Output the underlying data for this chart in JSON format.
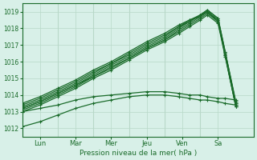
{
  "title": "",
  "xlabel": "Pression niveau de la mer( hPa )",
  "ylabel": "",
  "bg_color": "#d8f0e8",
  "grid_color": "#b8d8c8",
  "line_color": "#1a6b2a",
  "xlim": [
    0,
    6.5
  ],
  "ylim": [
    1011.5,
    1019.5
  ],
  "yticks": [
    1012,
    1013,
    1014,
    1015,
    1016,
    1017,
    1018,
    1019
  ],
  "day_positions": [
    0.5,
    1.5,
    2.5,
    3.5,
    4.5,
    5.5
  ],
  "day_labels": [
    "Lun",
    "Mar",
    "Mer",
    "Jeu",
    "Ven",
    "Sa"
  ],
  "series": [
    {
      "x": [
        0.0,
        0.5,
        1.0,
        1.5,
        2.0,
        2.5,
        3.0,
        3.5,
        4.0,
        4.4,
        4.7,
        5.0,
        5.2,
        5.5,
        5.7,
        6.0
      ],
      "y": [
        1013.1,
        1013.5,
        1014.0,
        1014.5,
        1015.1,
        1015.7,
        1016.2,
        1016.8,
        1017.3,
        1017.9,
        1018.3,
        1018.7,
        1019.0,
        1018.5,
        1016.5,
        1013.5
      ]
    },
    {
      "x": [
        0.0,
        0.5,
        1.0,
        1.5,
        2.0,
        2.5,
        3.0,
        3.5,
        4.0,
        4.4,
        4.7,
        5.0,
        5.2,
        5.5,
        5.7,
        6.0
      ],
      "y": [
        1013.2,
        1013.6,
        1014.1,
        1014.6,
        1015.2,
        1015.8,
        1016.3,
        1016.9,
        1017.4,
        1018.0,
        1018.4,
        1018.8,
        1019.1,
        1018.6,
        1016.6,
        1013.6
      ]
    },
    {
      "x": [
        0.0,
        0.5,
        1.0,
        1.5,
        2.0,
        2.5,
        3.0,
        3.5,
        4.0,
        4.4,
        4.7,
        5.0,
        5.2,
        5.5,
        5.7,
        6.0
      ],
      "y": [
        1013.0,
        1013.4,
        1013.9,
        1014.4,
        1015.0,
        1015.5,
        1016.1,
        1016.7,
        1017.2,
        1017.7,
        1018.1,
        1018.5,
        1018.8,
        1018.3,
        1016.3,
        1013.3
      ]
    },
    {
      "x": [
        0.0,
        0.5,
        1.0,
        1.5,
        2.0,
        2.5,
        3.0,
        3.5,
        4.0,
        4.4,
        4.7,
        5.0,
        5.2,
        5.5,
        5.7,
        6.0
      ],
      "y": [
        1013.3,
        1013.7,
        1014.2,
        1014.7,
        1015.3,
        1015.9,
        1016.4,
        1017.0,
        1017.5,
        1018.1,
        1018.4,
        1018.8,
        1019.0,
        1018.5,
        1016.5,
        1013.4
      ]
    },
    {
      "x": [
        0.0,
        0.5,
        1.0,
        1.5,
        2.0,
        2.5,
        3.0,
        3.5,
        4.0,
        4.4,
        4.7,
        5.0,
        5.2,
        5.5,
        5.7,
        6.0
      ],
      "y": [
        1013.4,
        1013.8,
        1014.3,
        1014.8,
        1015.4,
        1015.9,
        1016.5,
        1017.1,
        1017.6,
        1018.1,
        1018.5,
        1018.7,
        1019.0,
        1018.4,
        1016.4,
        1013.3
      ]
    },
    {
      "x": [
        0.0,
        0.5,
        1.0,
        1.5,
        2.0,
        2.5,
        3.0,
        3.5,
        4.0,
        4.4,
        4.7,
        5.0,
        5.2,
        5.5,
        5.7,
        6.0
      ],
      "y": [
        1013.2,
        1013.6,
        1014.1,
        1014.6,
        1015.1,
        1015.6,
        1016.2,
        1016.8,
        1017.3,
        1017.8,
        1018.2,
        1018.6,
        1018.9,
        1018.4,
        1016.4,
        1013.3
      ]
    },
    {
      "x": [
        0.0,
        0.5,
        1.0,
        1.5,
        2.0,
        2.5,
        3.0,
        3.5,
        4.0,
        4.4,
        4.7,
        5.0,
        5.2,
        5.5,
        5.7,
        6.0
      ],
      "y": [
        1013.5,
        1013.9,
        1014.4,
        1014.9,
        1015.5,
        1016.0,
        1016.6,
        1017.2,
        1017.7,
        1018.2,
        1018.5,
        1018.8,
        1019.1,
        1018.6,
        1016.6,
        1013.5
      ]
    },
    {
      "x": [
        0.0,
        0.5,
        1.0,
        1.5,
        2.0,
        2.5,
        3.0,
        3.5,
        4.0,
        4.4,
        4.7,
        5.0,
        5.2,
        5.5,
        5.7,
        6.0
      ],
      "y": [
        1012.1,
        1012.4,
        1012.8,
        1013.2,
        1013.5,
        1013.7,
        1013.9,
        1014.0,
        1014.0,
        1013.9,
        1013.8,
        1013.7,
        1013.7,
        1013.6,
        1013.5,
        1013.4
      ]
    },
    {
      "x": [
        0.0,
        0.5,
        1.0,
        1.5,
        2.0,
        2.5,
        3.0,
        3.5,
        4.0,
        4.4,
        4.7,
        5.0,
        5.2,
        5.5,
        5.7,
        6.0
      ],
      "y": [
        1013.0,
        1013.2,
        1013.4,
        1013.7,
        1013.9,
        1014.0,
        1014.1,
        1014.2,
        1014.2,
        1014.1,
        1014.0,
        1014.0,
        1013.9,
        1013.8,
        1013.8,
        1013.7
      ]
    }
  ]
}
